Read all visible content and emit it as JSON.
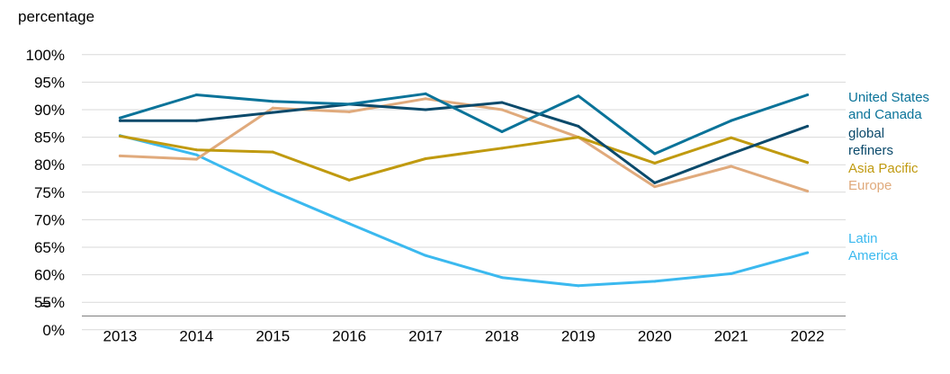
{
  "chart_data": {
    "type": "line",
    "title": "",
    "ylabel": "percentage",
    "xlabel": "",
    "x": [
      2013,
      2014,
      2015,
      2016,
      2017,
      2018,
      2019,
      2020,
      2021,
      2022
    ],
    "y_ticks": [
      "100%",
      "95%",
      "90%",
      "85%",
      "80%",
      "75%",
      "70%",
      "65%",
      "60%",
      "55%",
      "0%"
    ],
    "ylim": [
      52.5,
      100
    ],
    "axis_break": "between 55% and 0%",
    "grid": true,
    "legend_placement": "right, labels at line ends",
    "series": [
      {
        "name": "Latin America",
        "label_lines": [
          "Latin",
          "America"
        ],
        "color": "#3bb9ef",
        "values": [
          85.3,
          81.8,
          75.2,
          69.3,
          63.5,
          59.5,
          58.0,
          58.8,
          60.2,
          64.0
        ]
      },
      {
        "name": "Europe",
        "label_lines": [
          "Europe"
        ],
        "color": "#e0aa7c",
        "values": [
          81.6,
          81.0,
          90.3,
          89.6,
          92.0,
          90.0,
          85.0,
          76.0,
          79.7,
          75.2
        ]
      },
      {
        "name": "Asia Pacific",
        "label_lines": [
          "Asia Pacific"
        ],
        "color": "#c09a10",
        "values": [
          85.2,
          82.7,
          82.3,
          77.2,
          81.1,
          83.0,
          85.0,
          80.3,
          84.9,
          80.4
        ]
      },
      {
        "name": "global refiners",
        "label_lines": [
          "global",
          "refiners"
        ],
        "color": "#0b4a6b",
        "values": [
          88.0,
          88.0,
          89.5,
          91.0,
          90.0,
          91.3,
          87.0,
          76.7,
          82.0,
          87.0
        ]
      },
      {
        "name": "United States and Canada",
        "label_lines": [
          "United States",
          "and Canada"
        ],
        "color": "#0a7399",
        "values": [
          88.5,
          92.7,
          91.5,
          91.0,
          92.9,
          86.0,
          92.5,
          82.0,
          88.0,
          92.7
        ]
      }
    ]
  }
}
